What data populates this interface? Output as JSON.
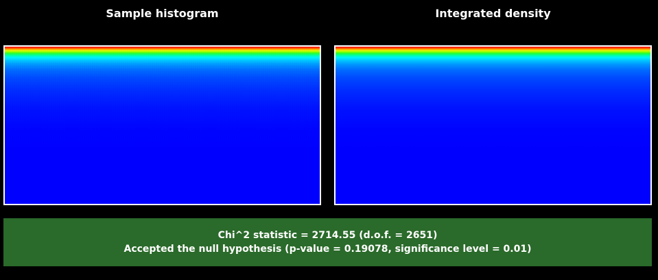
{
  "panels": {
    "left_title": "Sample histogram",
    "right_title": "Integrated density"
  },
  "colors": {
    "background": "#000000",
    "status_background": "#2a6a2a",
    "plot_border": "#ffffff",
    "colormap": [
      "#ff0000",
      "#ffff00",
      "#00ff00",
      "#00ffff",
      "#0000ff"
    ]
  },
  "status": {
    "line1": "Chi^2 statistic = 2714.55 (d.o.f. = 2651)",
    "line2": "Accepted the null hypothesis (p-value = 0.19078, significance level = 0.01)"
  }
}
